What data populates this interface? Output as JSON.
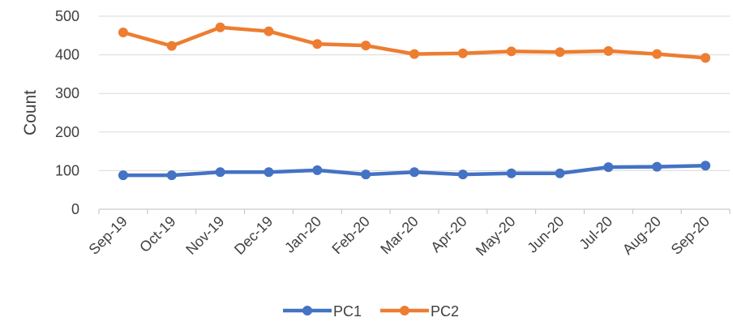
{
  "chart_data": {
    "type": "line",
    "title": "",
    "xlabel": "",
    "ylabel": "Count",
    "categories": [
      "Sep-19",
      "Oct-19",
      "Nov-19",
      "Dec-19",
      "Jan-20",
      "Feb-20",
      "Mar-20",
      "Apr-20",
      "May-20",
      "Jun-20",
      "Jul-20",
      "Aug-20",
      "Sep-20"
    ],
    "series": [
      {
        "name": "PC1",
        "color": "#4472C4",
        "values": [
          88,
          88,
          96,
          96,
          101,
          90,
          96,
          90,
          93,
          93,
          109,
          110,
          113
        ]
      },
      {
        "name": "PC2",
        "color": "#ED7D31",
        "values": [
          458,
          423,
          471,
          461,
          428,
          424,
          402,
          404,
          409,
          407,
          410,
          402,
          392
        ]
      }
    ],
    "ylim": [
      0,
      500
    ],
    "yticks": [
      "0",
      "100",
      "200",
      "300",
      "400",
      "500"
    ],
    "grid": "horizontal",
    "legend_position": "bottom"
  }
}
